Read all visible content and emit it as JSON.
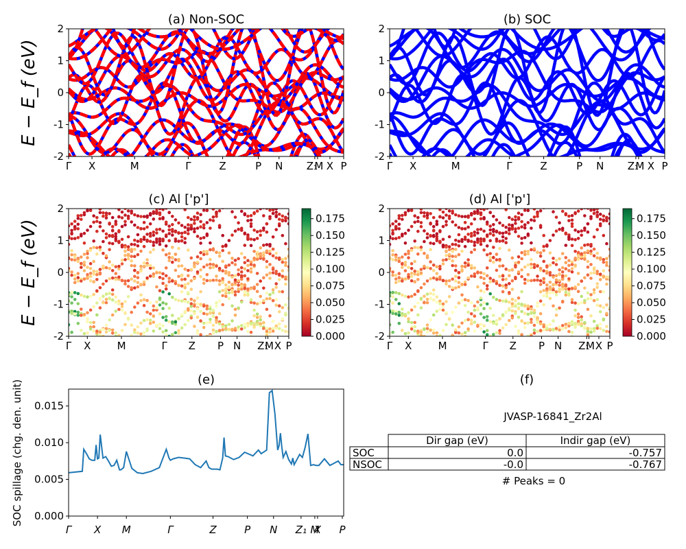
{
  "figure": {
    "ylabel_band": "E − E_f (eV)",
    "kpath": [
      "Γ",
      "X",
      "M",
      "Γ",
      "Z",
      "P",
      "N",
      "Z₁",
      "M",
      "X",
      "P"
    ]
  },
  "chart_data": [
    {
      "id": "a",
      "type": "line",
      "title": "(a) Non-SOC",
      "ylabel": "E − E_f (eV)",
      "ylim": [
        -2,
        2
      ],
      "yticks": [
        -2,
        -1,
        0,
        1,
        2
      ],
      "xtick_labels": [
        "Γ",
        "X",
        "M",
        "Γ",
        "Z",
        "P",
        "N",
        "Z₁",
        "M",
        "X",
        "P"
      ],
      "colors": [
        "#ff0000",
        "#0000ff"
      ],
      "series_note": "dense band structure; many bands within ±2 eV"
    },
    {
      "id": "b",
      "type": "line",
      "title": "(b) SOC",
      "ylim": [
        -2,
        2
      ],
      "yticks": [
        -2,
        -1,
        0,
        1,
        2
      ],
      "xtick_labels": [
        "Γ",
        "X",
        "M",
        "Γ",
        "Z",
        "P",
        "N",
        "Z₁",
        "M",
        "X",
        "P"
      ],
      "colors": [
        "#0000ff"
      ]
    },
    {
      "id": "c",
      "type": "scatter",
      "title": "(c)  Al ['p']",
      "ylabel": "E − E_f (eV)",
      "ylim": [
        -2,
        2
      ],
      "yticks": [
        -2,
        -1,
        0,
        1,
        2
      ],
      "xtick_labels": [
        "Γ",
        "X",
        "M",
        "Γ",
        "Z",
        "P",
        "N",
        "Z₁",
        "M",
        "X",
        "P"
      ],
      "colorbar": {
        "min": 0.0,
        "max": 0.19,
        "ticks": [
          "0.000",
          "0.025",
          "0.050",
          "0.075",
          "0.100",
          "0.125",
          "0.150",
          "0.175"
        ],
        "cmap": "RdYlGn"
      }
    },
    {
      "id": "d",
      "type": "scatter",
      "title": "(d) Al ['p']",
      "ylim": [
        -2,
        2
      ],
      "yticks": [
        -2,
        -1,
        0,
        1,
        2
      ],
      "xtick_labels": [
        "Γ",
        "X",
        "M",
        "Γ",
        "Z",
        "P",
        "N",
        "Z₁",
        "M",
        "X",
        "P"
      ],
      "colorbar": {
        "min": 0.0,
        "max": 0.19,
        "ticks": [
          "0.000",
          "0.025",
          "0.050",
          "0.075",
          "0.100",
          "0.125",
          "0.150",
          "0.175"
        ],
        "cmap": "RdYlGn"
      }
    },
    {
      "id": "e",
      "type": "line",
      "title": "(e)",
      "ylabel": "SOC spillage (chg. den. unit)",
      "ylim": [
        0,
        0.0173
      ],
      "yticks": [
        "0.000",
        "0.005",
        "0.010",
        "0.015"
      ],
      "xtick_labels": [
        "Γ",
        "X",
        "M",
        "Γ",
        "Z",
        "P",
        "N",
        "Z₁",
        "M",
        "X",
        "P"
      ],
      "color": "#1f77b4",
      "x": [
        0,
        0.05,
        0.055,
        0.065,
        0.075,
        0.085,
        0.095,
        0.1,
        0.105,
        0.11,
        0.115,
        0.125,
        0.135,
        0.145,
        0.155,
        0.165,
        0.175,
        0.185,
        0.19,
        0.2,
        0.21,
        0.23,
        0.25,
        0.27,
        0.3,
        0.33,
        0.355,
        0.365,
        0.37,
        0.38,
        0.4,
        0.42,
        0.44,
        0.46,
        0.48,
        0.5,
        0.51,
        0.52,
        0.54,
        0.55,
        0.56,
        0.565,
        0.57,
        0.58,
        0.6,
        0.62,
        0.64,
        0.67,
        0.69,
        0.7,
        0.72,
        0.73,
        0.74,
        0.75,
        0.76,
        0.765,
        0.77,
        0.775,
        0.78,
        0.79,
        0.8,
        0.81,
        0.815,
        0.82,
        0.83,
        0.84,
        0.85,
        0.86,
        0.87,
        0.88,
        0.89,
        0.9,
        0.91,
        0.93,
        0.95,
        0.96,
        0.98,
        0.99,
        1.0
      ],
      "y": [
        0.0059,
        0.0061,
        0.0091,
        0.0085,
        0.0078,
        0.0076,
        0.0076,
        0.0097,
        0.0078,
        0.0079,
        0.0111,
        0.0079,
        0.0081,
        0.0075,
        0.0068,
        0.0069,
        0.0076,
        0.0063,
        0.0063,
        0.0066,
        0.0088,
        0.0065,
        0.0059,
        0.0058,
        0.0061,
        0.0066,
        0.0091,
        0.0079,
        0.0076,
        0.0078,
        0.008,
        0.0079,
        0.0078,
        0.007,
        0.0066,
        0.0075,
        0.0066,
        0.0064,
        0.0064,
        0.0063,
        0.0079,
        0.0107,
        0.0082,
        0.0081,
        0.0077,
        0.008,
        0.0087,
        0.0082,
        0.009,
        0.0085,
        0.009,
        0.0168,
        0.0171,
        0.0139,
        0.009,
        0.0096,
        0.0113,
        0.0094,
        0.008,
        0.0088,
        0.0077,
        0.0071,
        0.0079,
        0.007,
        0.0077,
        0.0084,
        0.008,
        0.0094,
        0.0112,
        0.0069,
        0.007,
        0.0069,
        0.0069,
        0.0078,
        0.0069,
        0.0071,
        0.0075,
        0.007,
        0.007
      ]
    },
    {
      "id": "f",
      "type": "table",
      "title": "(f)",
      "name": "JVASP-16841_Zr2Al",
      "columns": [
        "Dir gap (eV)",
        "Indir gap (eV)"
      ],
      "rows": [
        {
          "label": "SOC",
          "dir": "0.0",
          "indir": "-0.757"
        },
        {
          "label": "NSOC",
          "dir": "-0.0",
          "indir": "-0.767"
        }
      ],
      "footer": "# Peaks = 0"
    }
  ]
}
